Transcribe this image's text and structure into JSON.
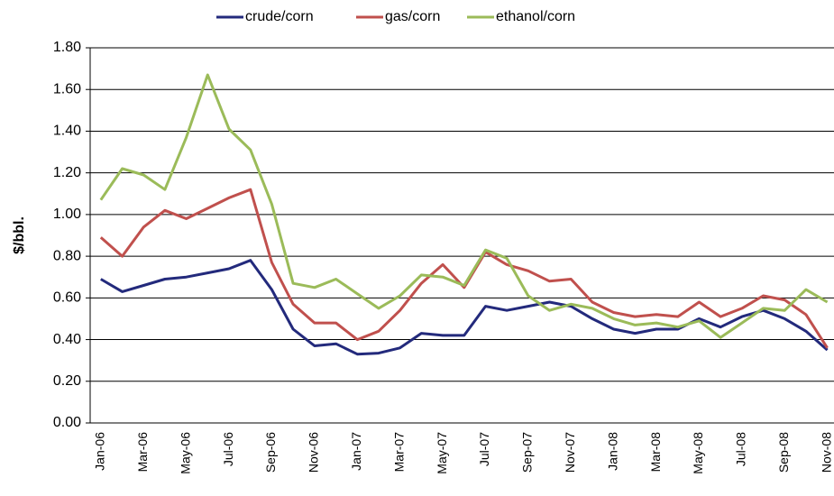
{
  "chart_data": {
    "type": "line",
    "y_label": "$/bbl.",
    "categories": [
      "Jan-06",
      null,
      "Mar-06",
      null,
      "May-06",
      null,
      "Jul-06",
      null,
      "Sep-06",
      null,
      "Nov-06",
      null,
      "Jan-07",
      null,
      "Mar-07",
      null,
      "May-07",
      null,
      "Jul-07",
      null,
      "Sep-07",
      null,
      "Nov-07",
      null,
      "Jan-08",
      null,
      "Mar-08",
      null,
      "May-08",
      null,
      "Jul-08",
      null,
      "Sep-08",
      null,
      "Nov-08"
    ],
    "series": [
      {
        "name": "crude/corn",
        "color": "#232a7c",
        "values": [
          0.69,
          0.63,
          0.66,
          0.69,
          0.7,
          0.72,
          0.74,
          0.78,
          0.64,
          0.45,
          0.37,
          0.38,
          0.33,
          0.335,
          0.36,
          0.43,
          0.42,
          0.42,
          0.56,
          0.54,
          0.56,
          0.58,
          0.56,
          0.5,
          0.45,
          0.43,
          0.45,
          0.45,
          0.5,
          0.46,
          0.51,
          0.54,
          0.5,
          0.44,
          0.35
        ]
      },
      {
        "name": "gas/corn",
        "color": "#c0504d",
        "values": [
          0.89,
          0.8,
          0.94,
          1.02,
          0.98,
          1.03,
          1.08,
          1.12,
          0.77,
          0.57,
          0.48,
          0.48,
          0.4,
          0.44,
          0.54,
          0.67,
          0.76,
          0.65,
          0.82,
          0.76,
          0.73,
          0.68,
          0.69,
          0.58,
          0.53,
          0.51,
          0.52,
          0.51,
          0.58,
          0.51,
          0.55,
          0.61,
          0.59,
          0.52,
          0.36
        ]
      },
      {
        "name": "ethanol/corn",
        "color": "#9bbb59",
        "values": [
          1.07,
          1.22,
          1.19,
          1.12,
          1.37,
          1.67,
          1.41,
          1.31,
          1.05,
          0.67,
          0.65,
          0.69,
          0.62,
          0.55,
          0.61,
          0.71,
          0.7,
          0.66,
          0.83,
          0.79,
          0.61,
          0.54,
          0.57,
          0.55,
          0.5,
          0.47,
          0.48,
          0.46,
          0.49,
          0.41,
          0.48,
          0.55,
          0.54,
          0.64,
          0.58
        ]
      }
    ],
    "ylim": [
      0,
      1.8
    ],
    "yticks": [
      {
        "value": 0,
        "label": "0.00"
      },
      {
        "value": 0.2,
        "label": "0.20"
      },
      {
        "value": 0.4,
        "label": "0.40"
      },
      {
        "value": 0.6,
        "label": "0.60"
      },
      {
        "value": 0.8,
        "label": "0.80"
      },
      {
        "value": 1.0,
        "label": "1.00"
      },
      {
        "value": 1.2,
        "label": "1.20"
      },
      {
        "value": 1.4,
        "label": "1.40"
      },
      {
        "value": 1.6,
        "label": "1.60"
      },
      {
        "value": 1.8,
        "label": "1.80"
      }
    ],
    "grid": true,
    "legend": "top"
  }
}
